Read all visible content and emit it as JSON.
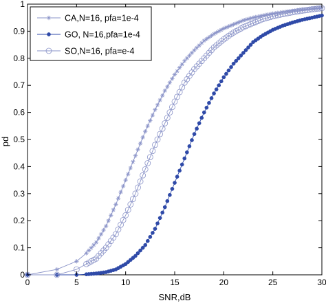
{
  "chart_data": {
    "type": "line",
    "xlabel": "SNR,dB",
    "ylabel": "pd",
    "xlim": [
      0,
      30
    ],
    "ylim": [
      0,
      1
    ],
    "xticks": [
      "0",
      "5",
      "10",
      "15",
      "20",
      "25",
      "30"
    ],
    "yticks": [
      "0",
      "0.1",
      "0.2",
      "0.3",
      "0.4",
      "0.5",
      "0.6",
      "0.7",
      "0.8",
      "0.9",
      "1"
    ],
    "grid": false,
    "legend_position": "top-left",
    "series": [
      {
        "name": "CA,N=16, pfa=1e-4",
        "marker": "star",
        "color": "#8a93c8",
        "x": [
          0,
          3,
          5,
          6,
          7,
          8,
          9,
          10,
          11,
          12,
          13,
          14,
          15,
          16,
          17,
          18,
          19,
          20,
          21,
          22,
          23,
          24,
          25,
          26,
          27,
          28,
          29,
          30
        ],
        "y": [
          0.0,
          0.02,
          0.05,
          0.08,
          0.12,
          0.18,
          0.26,
          0.35,
          0.44,
          0.53,
          0.61,
          0.68,
          0.74,
          0.79,
          0.83,
          0.865,
          0.89,
          0.91,
          0.925,
          0.94,
          0.95,
          0.958,
          0.965,
          0.97,
          0.975,
          0.98,
          0.983,
          0.986
        ]
      },
      {
        "name": "GO, N=16,pfa=1e-4",
        "marker": "filled-circle",
        "color": "#2f4aa8",
        "x": [
          0,
          3,
          5,
          6,
          7,
          8,
          9,
          10,
          11,
          12,
          13,
          14,
          15,
          16,
          17,
          18,
          19,
          20,
          21,
          22,
          23,
          24,
          25,
          26,
          27,
          28,
          29,
          30
        ],
        "y": [
          0.0,
          0.0,
          0.0,
          0.002,
          0.005,
          0.01,
          0.02,
          0.04,
          0.07,
          0.11,
          0.17,
          0.25,
          0.34,
          0.43,
          0.52,
          0.6,
          0.67,
          0.73,
          0.78,
          0.82,
          0.86,
          0.885,
          0.905,
          0.92,
          0.932,
          0.942,
          0.95,
          0.958
        ]
      },
      {
        "name": "SO,N=16, pfa=e-4",
        "marker": "open-circle",
        "color": "#8a93c8",
        "x": [
          0,
          3,
          5,
          6,
          7,
          8,
          9,
          10,
          11,
          12,
          13,
          14,
          15,
          16,
          17,
          18,
          19,
          20,
          21,
          22,
          23,
          24,
          25,
          26,
          27,
          28,
          29,
          30
        ],
        "y": [
          0.0,
          0.0,
          0.02,
          0.04,
          0.06,
          0.1,
          0.15,
          0.22,
          0.3,
          0.39,
          0.48,
          0.56,
          0.64,
          0.71,
          0.76,
          0.8,
          0.84,
          0.87,
          0.895,
          0.915,
          0.93,
          0.945,
          0.955,
          0.963,
          0.97,
          0.976,
          0.981,
          0.985
        ]
      }
    ]
  }
}
